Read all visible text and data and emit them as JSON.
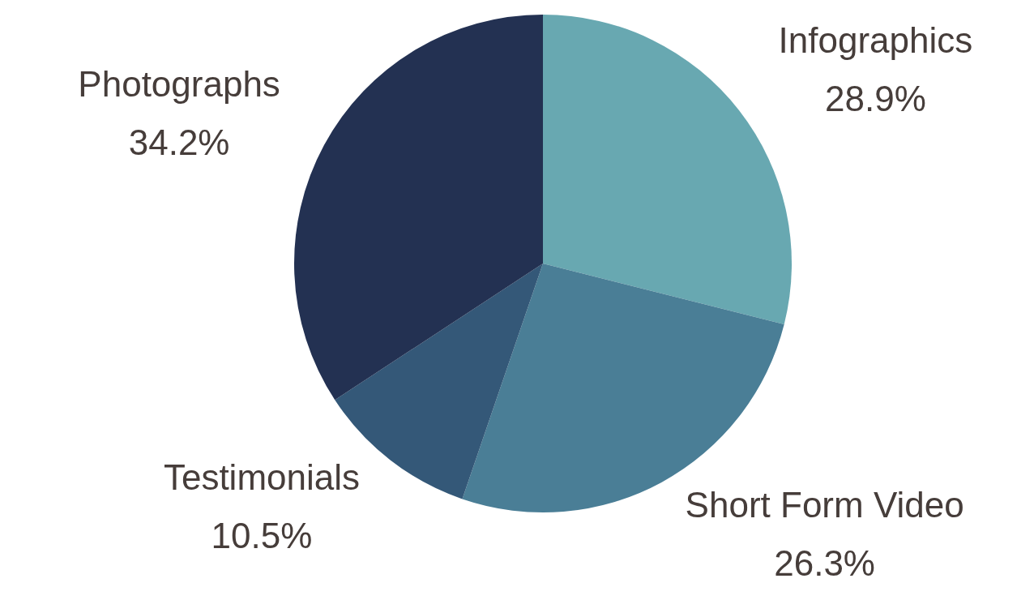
{
  "chart_data": {
    "type": "pie",
    "categories": [
      "Infographics",
      "Short Form Video",
      "Testimonials",
      "Photographs"
    ],
    "values": [
      28.9,
      26.3,
      10.5,
      34.2
    ],
    "value_labels": [
      "28.9%",
      "26.3%",
      "10.5%",
      "34.2%"
    ],
    "colors": [
      "#68a8b1",
      "#4a7e96",
      "#345878",
      "#233152"
    ],
    "legend": false
  }
}
